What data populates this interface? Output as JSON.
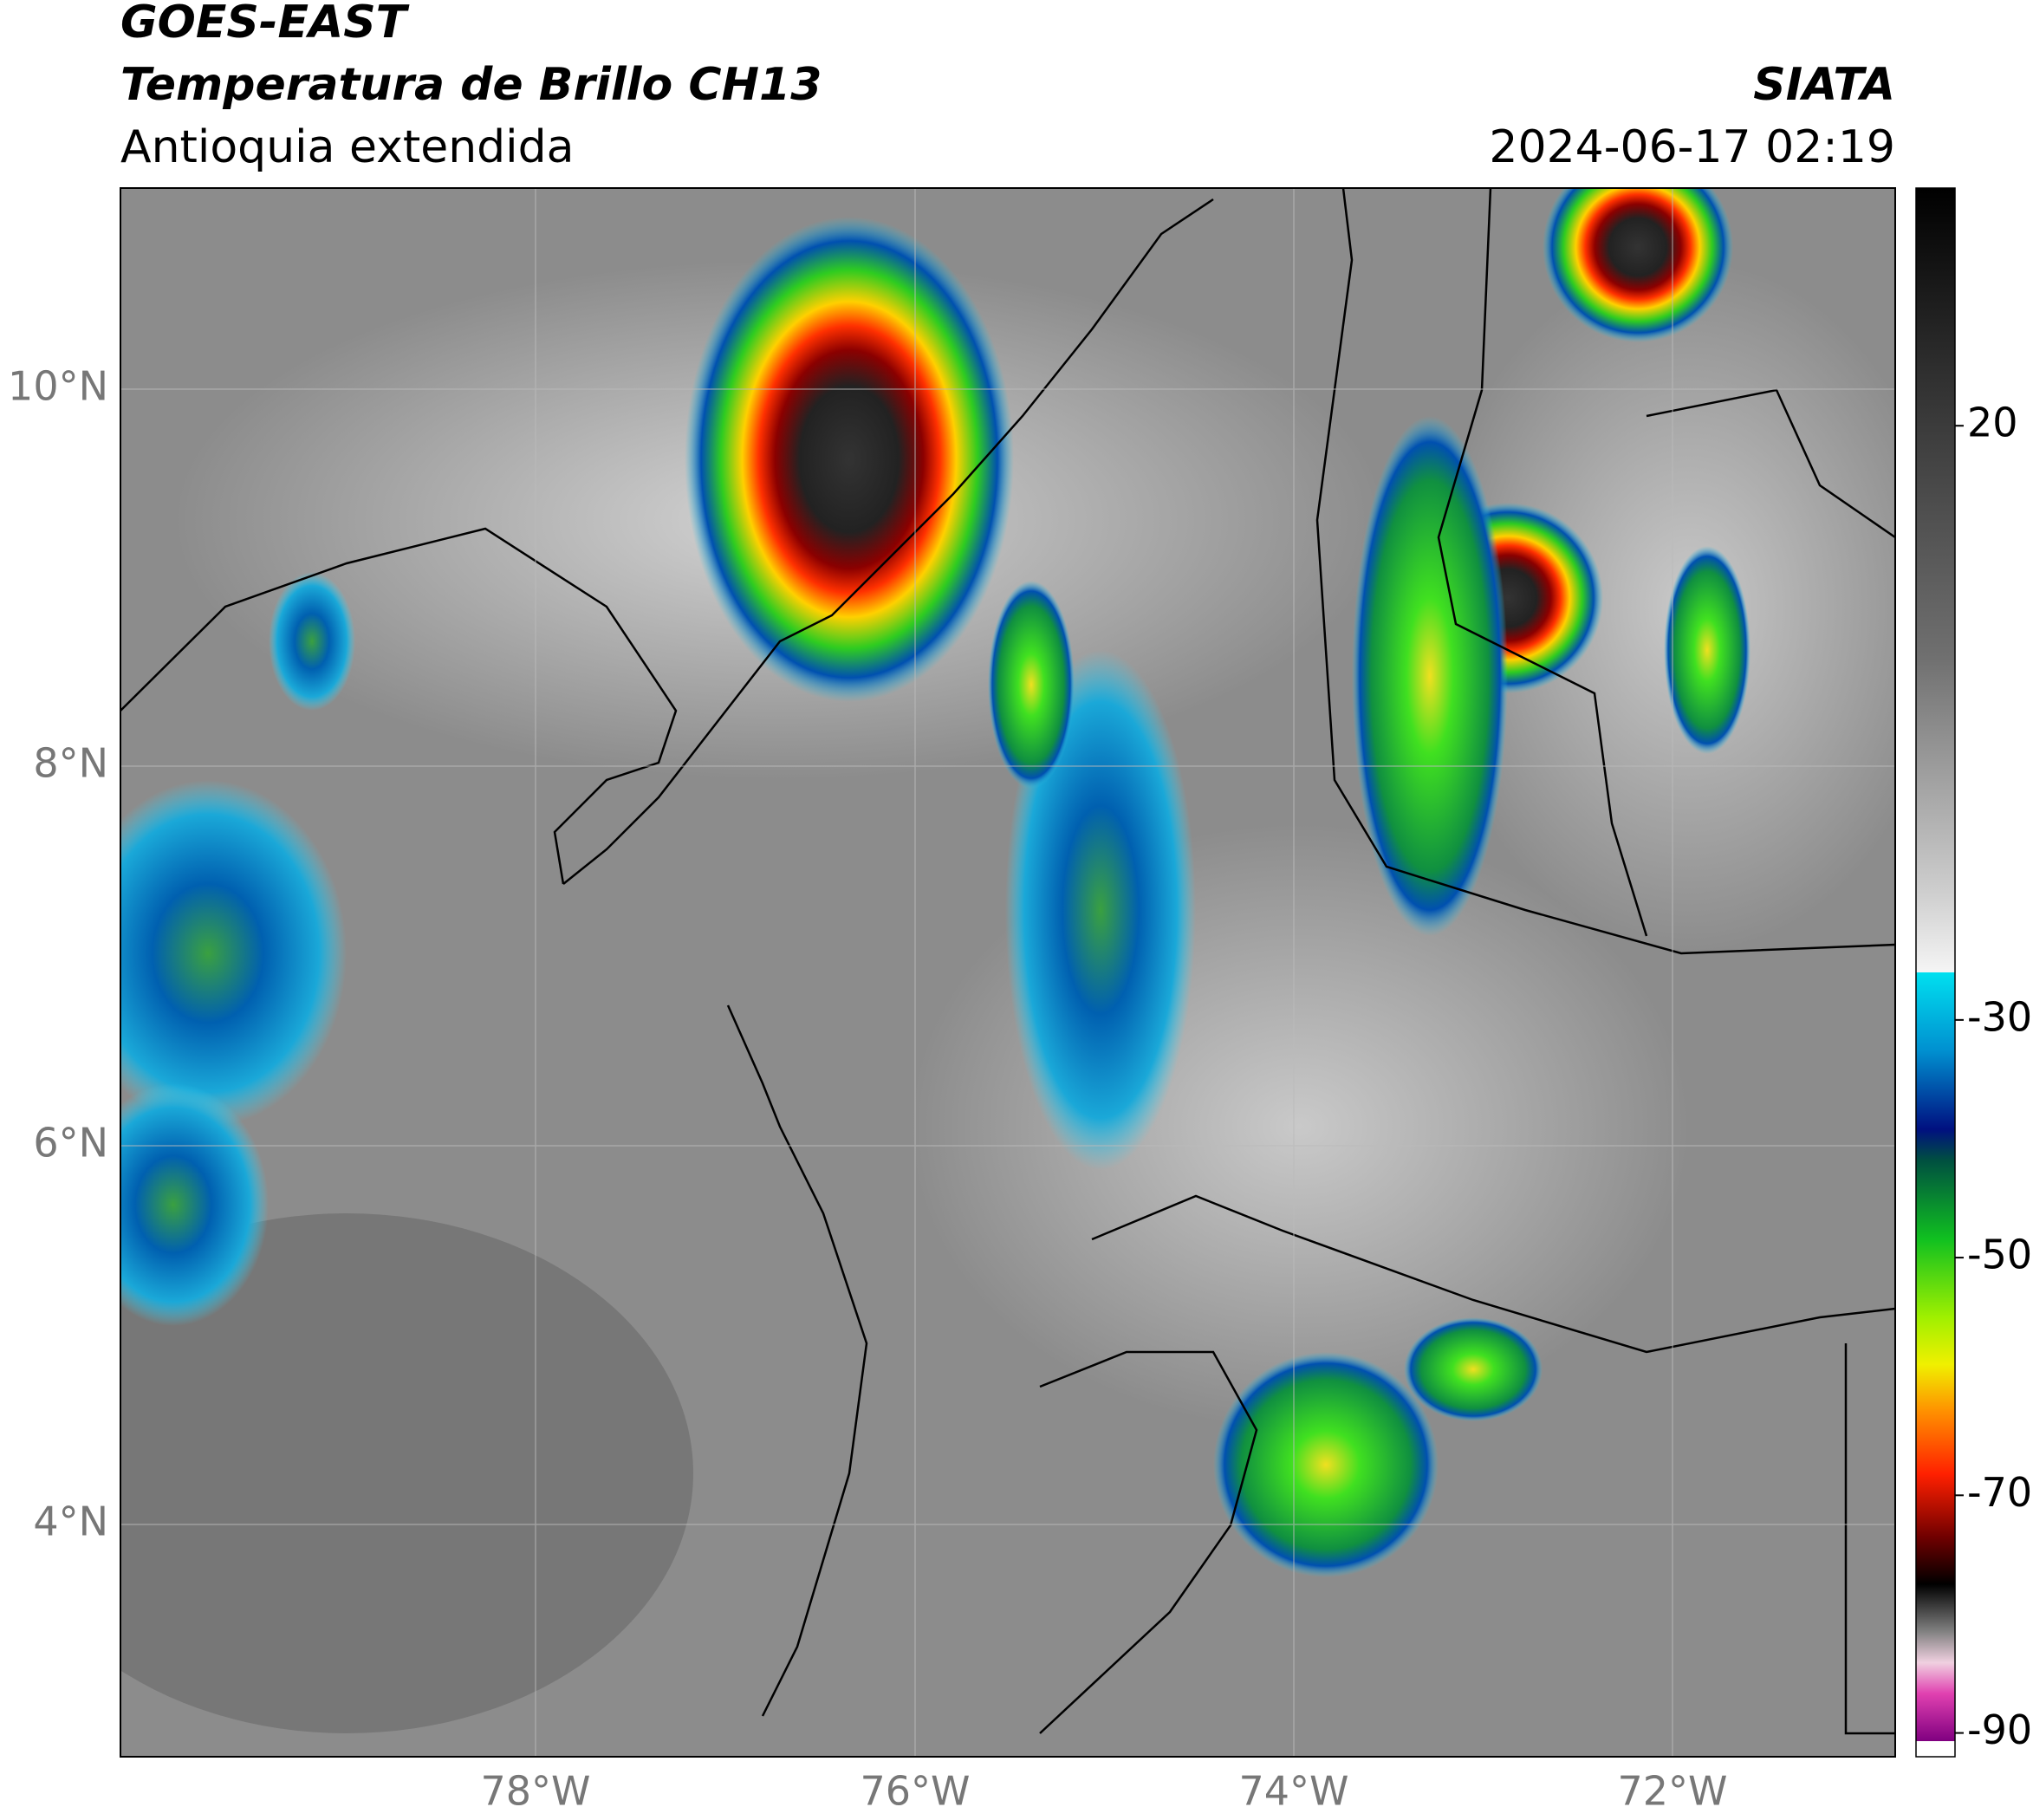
{
  "header": {
    "title": "GOES-EAST",
    "subtitle": "Temperatura de Brillo CH13",
    "region": "Antioquia extendida",
    "source": "SIATA",
    "datetime": "2024-06-17 02:19"
  },
  "map": {
    "lat_labels": [
      "10°N",
      "8°N",
      "6°N",
      "4°N"
    ],
    "lon_labels": [
      "78°W",
      "76°W",
      "74°W",
      "72°W"
    ]
  },
  "colorbar": {
    "range": [
      -92,
      40
    ],
    "ticks": [
      20,
      -30,
      -50,
      -70,
      -90
    ]
  }
}
